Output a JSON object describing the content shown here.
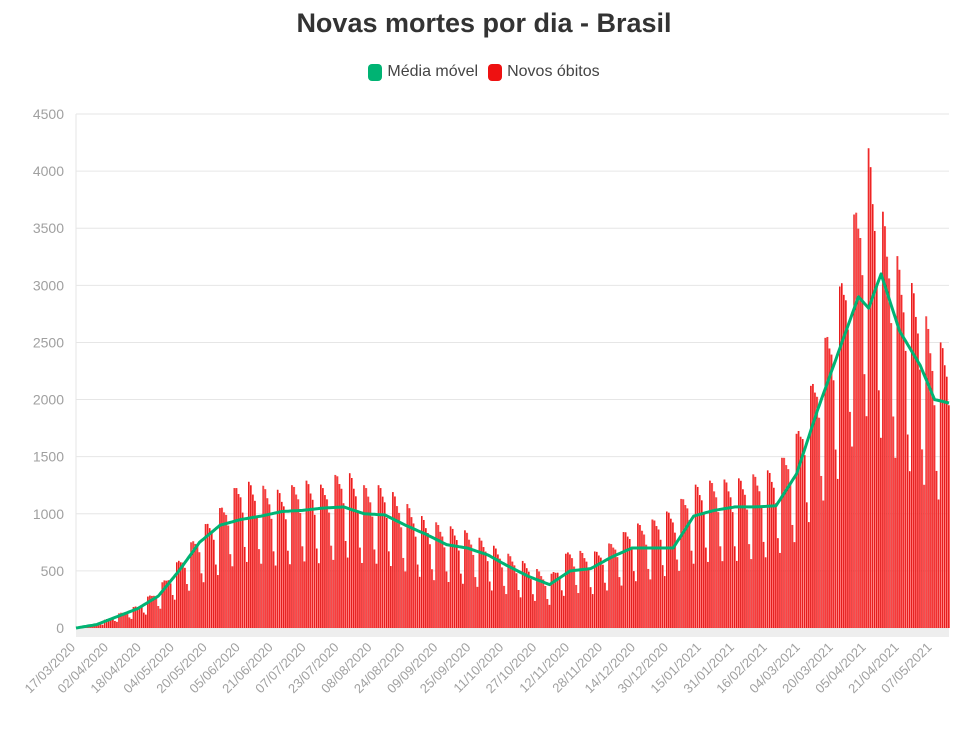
{
  "chart_data": {
    "type": "bar",
    "title": "Novas mortes por dia - Brasil",
    "xlabel": "",
    "ylabel": "",
    "ylim": [
      0,
      4500
    ],
    "yticks": [
      0,
      500,
      1000,
      1500,
      2000,
      2500,
      3000,
      3500,
      4000,
      4500
    ],
    "x_start": "17/03/2020",
    "x_end": "15/05/2021",
    "x_tick_labels": [
      "17/03/2020",
      "02/04/2020",
      "18/04/2020",
      "04/05/2020",
      "20/05/2020",
      "05/06/2020",
      "21/06/2020",
      "07/07/2020",
      "23/07/2020",
      "08/08/2020",
      "24/08/2020",
      "09/09/2020",
      "25/09/2020",
      "11/10/2020",
      "27/10/2020",
      "12/11/2020",
      "28/11/2020",
      "14/12/2020",
      "30/12/2020",
      "15/01/2021",
      "31/01/2021",
      "16/02/2021",
      "04/03/2021",
      "20/03/2021",
      "05/04/2021",
      "21/04/2021",
      "07/05/2021"
    ],
    "grid": true,
    "legend_position": "top-center",
    "series": [
      {
        "name": "Média móvel",
        "kind": "line",
        "color": "#00b373",
        "points": [
          [
            "17/03/2020",
            0
          ],
          [
            "27/03/2020",
            30
          ],
          [
            "06/04/2020",
            100
          ],
          [
            "16/04/2020",
            170
          ],
          [
            "26/04/2020",
            280
          ],
          [
            "06/05/2020",
            500
          ],
          [
            "16/05/2020",
            750
          ],
          [
            "26/05/2020",
            900
          ],
          [
            "05/06/2020",
            950
          ],
          [
            "15/06/2020",
            980
          ],
          [
            "25/06/2020",
            1020
          ],
          [
            "05/07/2020",
            1030
          ],
          [
            "15/07/2020",
            1050
          ],
          [
            "25/07/2020",
            1060
          ],
          [
            "04/08/2020",
            1000
          ],
          [
            "14/08/2020",
            990
          ],
          [
            "24/08/2020",
            900
          ],
          [
            "03/09/2020",
            820
          ],
          [
            "13/09/2020",
            730
          ],
          [
            "23/09/2020",
            700
          ],
          [
            "03/10/2020",
            640
          ],
          [
            "13/10/2020",
            540
          ],
          [
            "23/10/2020",
            450
          ],
          [
            "02/11/2020",
            380
          ],
          [
            "12/11/2020",
            500
          ],
          [
            "22/11/2020",
            520
          ],
          [
            "02/12/2020",
            620
          ],
          [
            "12/12/2020",
            700
          ],
          [
            "22/12/2020",
            700
          ],
          [
            "01/01/2021",
            700
          ],
          [
            "11/01/2021",
            980
          ],
          [
            "21/01/2021",
            1030
          ],
          [
            "31/01/2021",
            1060
          ],
          [
            "10/02/2021",
            1060
          ],
          [
            "20/02/2021",
            1070
          ],
          [
            "02/03/2021",
            1350
          ],
          [
            "12/03/2021",
            1900
          ],
          [
            "22/03/2021",
            2400
          ],
          [
            "01/04/2021",
            2900
          ],
          [
            "06/04/2021",
            2800
          ],
          [
            "12/04/2021",
            3100
          ],
          [
            "21/04/2021",
            2600
          ],
          [
            "01/05/2021",
            2300
          ],
          [
            "08/05/2021",
            2000
          ],
          [
            "15/05/2021",
            1970
          ]
        ]
      },
      {
        "name": "Novos óbitos",
        "kind": "bar",
        "color": "#ee1111",
        "points": [
          [
            "17/03/2020",
            0
          ],
          [
            "27/03/2020",
            40
          ],
          [
            "06/04/2020",
            120
          ],
          [
            "16/04/2020",
            200
          ],
          [
            "26/04/2020",
            350
          ],
          [
            "06/05/2020",
            600
          ],
          [
            "16/05/2020",
            850
          ],
          [
            "26/05/2020",
            1050
          ],
          [
            "05/06/2020",
            1300
          ],
          [
            "15/06/2020",
            1250
          ],
          [
            "25/06/2020",
            1200
          ],
          [
            "05/07/2020",
            1300
          ],
          [
            "15/07/2020",
            1250
          ],
          [
            "25/07/2020",
            1400
          ],
          [
            "04/08/2020",
            1250
          ],
          [
            "14/08/2020",
            1250
          ],
          [
            "24/08/2020",
            1100
          ],
          [
            "03/09/2020",
            950
          ],
          [
            "13/09/2020",
            900
          ],
          [
            "23/09/2020",
            850
          ],
          [
            "03/10/2020",
            750
          ],
          [
            "13/10/2020",
            650
          ],
          [
            "23/10/2020",
            560
          ],
          [
            "02/11/2020",
            450
          ],
          [
            "12/11/2020",
            700
          ],
          [
            "22/11/2020",
            650
          ],
          [
            "02/12/2020",
            750
          ],
          [
            "12/12/2020",
            900
          ],
          [
            "22/12/2020",
            950
          ],
          [
            "01/01/2021",
            1050
          ],
          [
            "11/01/2021",
            1250
          ],
          [
            "21/01/2021",
            1300
          ],
          [
            "31/01/2021",
            1300
          ],
          [
            "10/02/2021",
            1350
          ],
          [
            "20/02/2021",
            1400
          ],
          [
            "02/03/2021",
            1700
          ],
          [
            "12/03/2021",
            2300
          ],
          [
            "22/03/2021",
            2900
          ],
          [
            "01/04/2021",
            3800
          ],
          [
            "06/04/2021",
            4200
          ],
          [
            "12/04/2021",
            3700
          ],
          [
            "21/04/2021",
            3200
          ],
          [
            "01/05/2021",
            2900
          ],
          [
            "08/05/2021",
            2500
          ],
          [
            "15/05/2021",
            2500
          ]
        ]
      }
    ]
  }
}
